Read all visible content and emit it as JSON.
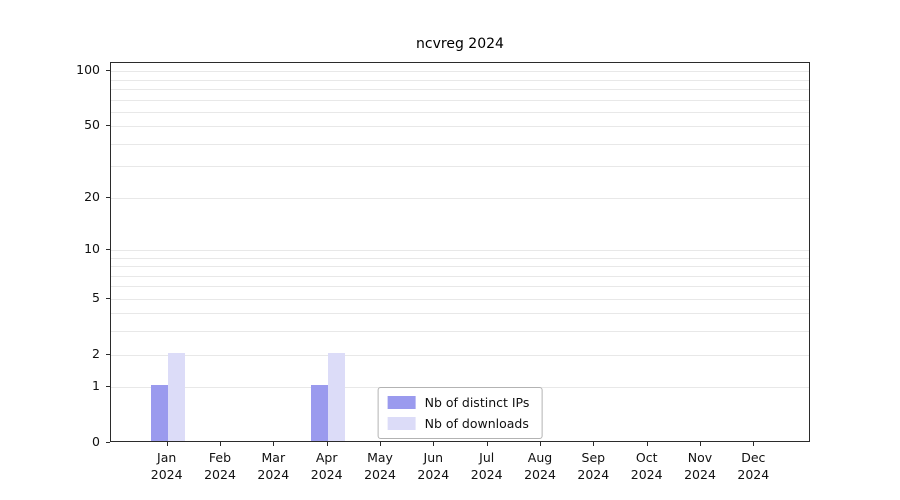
{
  "chart_data": {
    "type": "bar",
    "title": "ncvreg 2024",
    "categories": [
      "Jan",
      "Feb",
      "Mar",
      "Apr",
      "May",
      "Jun",
      "Jul",
      "Aug",
      "Sep",
      "Oct",
      "Nov",
      "Dec"
    ],
    "year_label": "2024",
    "series": [
      {
        "name": "Nb of distinct IPs",
        "color": "#9a9aee",
        "values": [
          1,
          0,
          0,
          1,
          0,
          0,
          0,
          0,
          0,
          0,
          0,
          0
        ]
      },
      {
        "name": "Nb of downloads",
        "color": "#dcdcf8",
        "values": [
          2,
          0,
          0,
          2,
          0,
          0,
          0,
          0,
          0,
          0,
          0,
          0
        ]
      }
    ],
    "y_scale": "log1p",
    "ylim": [
      0,
      111
    ],
    "ylim_top": 111,
    "y_ticks": [
      100,
      50,
      20,
      10,
      5,
      2,
      1,
      0
    ],
    "y_minor_gridlines": [
      1,
      2,
      3,
      4,
      5,
      6,
      7,
      8,
      9,
      10,
      20,
      30,
      40,
      50,
      60,
      70,
      80,
      90,
      100
    ],
    "xlabel": "",
    "ylabel": "",
    "grid": "on",
    "legend_position": "bottom-center",
    "grid_color": "#e8e8e8",
    "axis_color": "#2b2b2b"
  }
}
